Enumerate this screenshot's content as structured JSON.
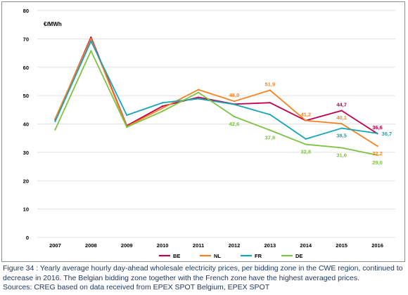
{
  "chart_data": {
    "type": "line",
    "unit_label": "€/MWh",
    "x": [
      "2007",
      "2008",
      "2009",
      "2010",
      "2011",
      "2012",
      "2013",
      "2014",
      "2015",
      "2016"
    ],
    "ylim": [
      0,
      80
    ],
    "yticks": [
      0,
      10,
      20,
      30,
      40,
      50,
      60,
      70,
      80
    ],
    "grid": true,
    "legend_position": "bottom",
    "series": [
      {
        "name": "BE",
        "color": "#c0004d",
        "values": [
          41.5,
          70.6,
          39.4,
          46.3,
          49.4,
          47.0,
          47.5,
          41.2,
          44.7,
          36.6
        ]
      },
      {
        "name": "NL",
        "color": "#f5821f",
        "values": [
          41.9,
          70.1,
          39.1,
          45.6,
          52.1,
          48.0,
          51.9,
          41.2,
          40.1,
          32.2
        ]
      },
      {
        "name": "FR",
        "color": "#17a5b5",
        "values": [
          40.9,
          69.2,
          43.1,
          47.5,
          48.9,
          46.9,
          43.3,
          34.7,
          38.5,
          36.7
        ]
      },
      {
        "name": "DE",
        "color": "#7dc242",
        "values": [
          38.0,
          65.8,
          38.9,
          44.5,
          51.1,
          42.6,
          37.8,
          32.8,
          31.6,
          29.0
        ]
      }
    ],
    "data_labels": [
      {
        "series": "NL",
        "x": "2012",
        "text": "48,0",
        "pos": "above"
      },
      {
        "series": "NL",
        "x": "2013",
        "text": "51,9",
        "pos": "above"
      },
      {
        "series": "NL",
        "x": "2014",
        "text": "41,2",
        "pos": "above"
      },
      {
        "series": "BE",
        "x": "2015",
        "text": "44,7",
        "pos": "above"
      },
      {
        "series": "NL",
        "x": "2015",
        "text": "40,1",
        "pos": "above"
      },
      {
        "series": "BE",
        "x": "2016",
        "text": "36,6",
        "pos": "above"
      },
      {
        "series": "FR",
        "x": "2016",
        "text": "36,7",
        "pos": "right"
      },
      {
        "series": "NL",
        "x": "2016",
        "text": "32,2",
        "pos": "below"
      },
      {
        "series": "DE",
        "x": "2012",
        "text": "42,6",
        "pos": "below"
      },
      {
        "series": "DE",
        "x": "2013",
        "text": "37,8",
        "pos": "below"
      },
      {
        "series": "DE",
        "x": "2014",
        "text": "32,8",
        "pos": "below"
      },
      {
        "series": "FR",
        "x": "2015",
        "text": "38,5",
        "pos": "below"
      },
      {
        "series": "DE",
        "x": "2015",
        "text": "31,6",
        "pos": "below"
      },
      {
        "series": "DE",
        "x": "2016",
        "text": "29,0",
        "pos": "below"
      }
    ]
  },
  "caption": {
    "line1": "Figure 34 : Yearly average hourly day-ahead wholesale electricity prices, per bidding zone in the CWE region, continued to decrease in 2016. The Belgian bidding zone together with the French zone have the highest averaged prices.",
    "line2": "Sources: CREG based on data received from EPEX SPOT Belgium, EPEX SPOT"
  }
}
